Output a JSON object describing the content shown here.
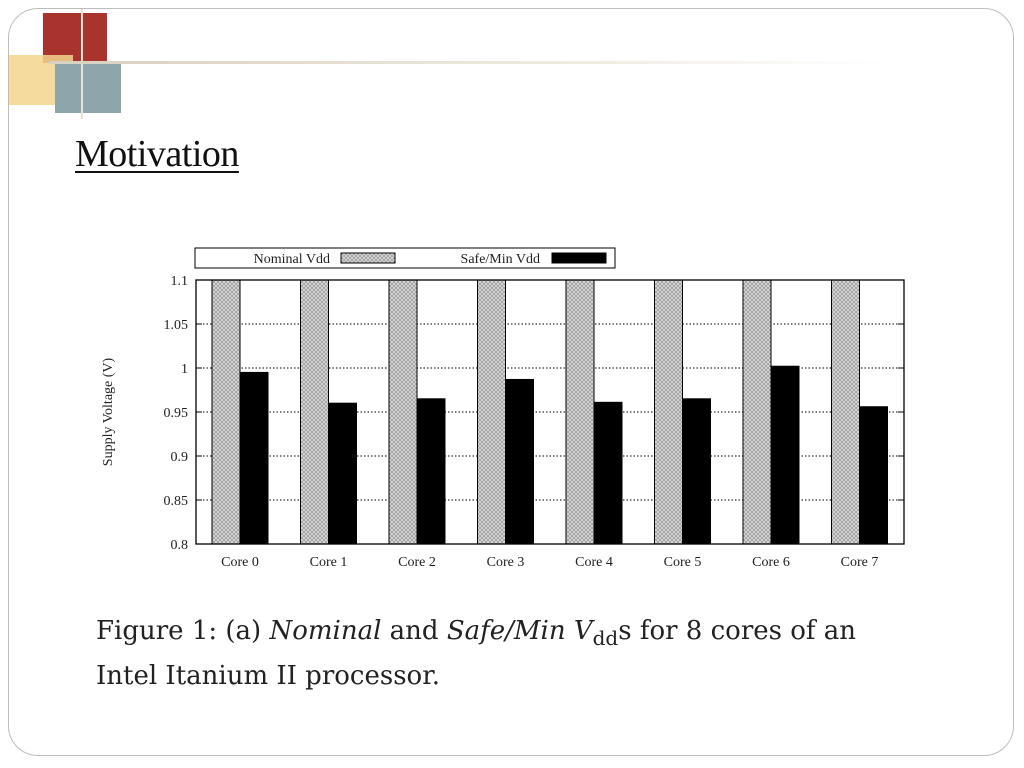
{
  "slide": {
    "title": "Motivation",
    "caption": {
      "part1": "Figure 1:  (a) ",
      "nominal": "Nominal",
      "part2": " and ",
      "safe": "Safe/Min",
      "v": " V",
      "sub": "dd",
      "part3": "s for 8 cores of an",
      "line2": "Intel Itanium II processor."
    }
  },
  "colors": {
    "nominal_fill": "#d4d4d4",
    "safe_fill": "#000000",
    "accent_red": "#a8342d",
    "accent_yellow": "#f3d58d",
    "accent_gray": "#8ea6ab"
  },
  "chart_data": {
    "type": "bar",
    "categories": [
      "Core 0",
      "Core 1",
      "Core 2",
      "Core 3",
      "Core 4",
      "Core 5",
      "Core 6",
      "Core 7"
    ],
    "series": [
      {
        "name": "Nominal Vdd",
        "values": [
          1.1,
          1.1,
          1.1,
          1.1,
          1.1,
          1.1,
          1.1,
          1.1
        ]
      },
      {
        "name": "Safe/Min Vdd",
        "values": [
          0.995,
          0.96,
          0.965,
          0.987,
          0.961,
          0.965,
          1.002,
          0.956
        ]
      }
    ],
    "ylabel": "Supply Voltage (V)",
    "ylim": [
      0.8,
      1.1
    ],
    "yticks": [
      "0.8",
      "0.85",
      "0.9",
      "0.95",
      "1",
      "1.05",
      "1.1"
    ],
    "grid": true,
    "legend_position": "top"
  }
}
